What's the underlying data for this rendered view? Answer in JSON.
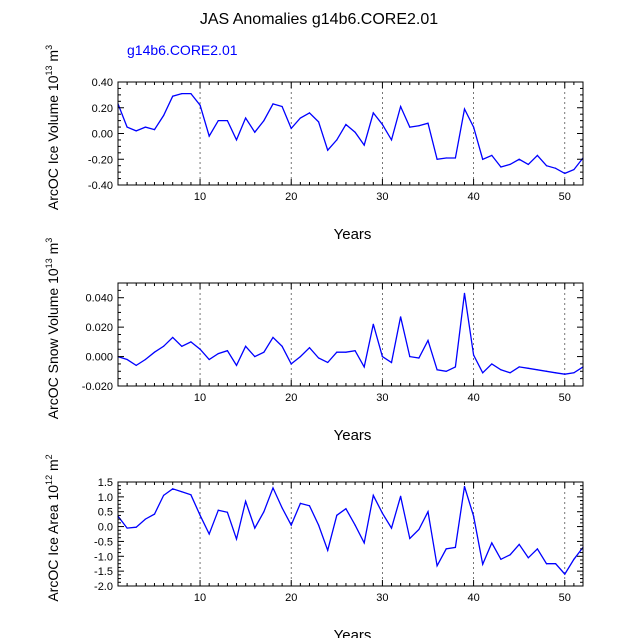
{
  "title": "JAS Anomalies g14b6.CORE2.01",
  "legend_label": "g14b6.CORE2.01",
  "colors": {
    "series": "#0000ff",
    "axis": "#000000",
    "refline": "#555555"
  },
  "chart_data": [
    {
      "type": "line",
      "name": "ice-volume",
      "ylabel_parts": {
        "main": "ArcOC Ice Volume 10",
        "exp": "13",
        "unit": " m",
        "unit_exp": "3"
      },
      "xlabel": "Years",
      "xlim": [
        1,
        52
      ],
      "ylim": [
        -0.4,
        0.4
      ],
      "xticks": [
        10,
        20,
        30,
        40,
        50
      ],
      "yticks": [
        -0.4,
        -0.2,
        0.0,
        0.2,
        0.4
      ],
      "ytick_labels": [
        "-0.40",
        "-0.20",
        "0.00",
        "0.20",
        "0.40"
      ],
      "vlines": [
        10,
        20,
        30,
        40,
        50
      ],
      "x": [
        1,
        2,
        3,
        4,
        5,
        6,
        7,
        8,
        9,
        10,
        11,
        12,
        13,
        14,
        15,
        16,
        17,
        18,
        19,
        20,
        21,
        22,
        23,
        24,
        25,
        26,
        27,
        28,
        29,
        30,
        31,
        32,
        33,
        34,
        35,
        36,
        37,
        38,
        39,
        40,
        41,
        42,
        43,
        44,
        45,
        46,
        47,
        48,
        49,
        50,
        51,
        52
      ],
      "values": [
        0.23,
        0.05,
        0.02,
        0.05,
        0.03,
        0.14,
        0.29,
        0.31,
        0.31,
        0.22,
        -0.02,
        0.1,
        0.1,
        -0.05,
        0.12,
        0.01,
        0.1,
        0.23,
        0.21,
        0.04,
        0.12,
        0.16,
        0.09,
        -0.13,
        -0.05,
        0.07,
        0.01,
        -0.09,
        0.16,
        0.07,
        -0.05,
        0.21,
        0.05,
        0.06,
        0.08,
        -0.2,
        -0.19,
        -0.19,
        0.19,
        0.05,
        -0.2,
        -0.17,
        -0.26,
        -0.24,
        -0.2,
        -0.24,
        -0.17,
        -0.25,
        -0.27,
        -0.31,
        -0.28,
        -0.19
      ]
    },
    {
      "type": "line",
      "name": "snow-volume",
      "ylabel_parts": {
        "main": "ArcOC Snow Volume 10",
        "exp": "13",
        "unit": " m",
        "unit_exp": "3"
      },
      "xlabel": "Years",
      "xlim": [
        1,
        52
      ],
      "ylim": [
        -0.02,
        0.05
      ],
      "xticks": [
        10,
        20,
        30,
        40,
        50
      ],
      "yticks": [
        -0.02,
        0.0,
        0.02,
        0.04
      ],
      "ytick_labels": [
        "-0.020",
        "0.000",
        "0.020",
        "0.040"
      ],
      "vlines": [
        10,
        20,
        30,
        40,
        50
      ],
      "x": [
        1,
        2,
        3,
        4,
        5,
        6,
        7,
        8,
        9,
        10,
        11,
        12,
        13,
        14,
        15,
        16,
        17,
        18,
        19,
        20,
        21,
        22,
        23,
        24,
        25,
        26,
        27,
        28,
        29,
        30,
        31,
        32,
        33,
        34,
        35,
        36,
        37,
        38,
        39,
        40,
        41,
        42,
        43,
        44,
        45,
        46,
        47,
        48,
        49,
        50,
        51,
        52
      ],
      "values": [
        0.0,
        -0.002,
        -0.006,
        -0.002,
        0.003,
        0.007,
        0.013,
        0.007,
        0.01,
        0.005,
        -0.002,
        0.002,
        0.004,
        -0.006,
        0.007,
        0.0,
        0.003,
        0.013,
        0.007,
        -0.005,
        0.0,
        0.006,
        -0.001,
        -0.004,
        0.003,
        0.003,
        0.004,
        -0.007,
        0.022,
        0.0,
        -0.004,
        0.027,
        0.0,
        -0.001,
        0.011,
        -0.009,
        -0.01,
        -0.007,
        0.043,
        0.001,
        -0.011,
        -0.005,
        -0.009,
        -0.011,
        -0.007,
        -0.008,
        -0.009,
        -0.01,
        -0.011,
        -0.012,
        -0.011,
        -0.007
      ]
    },
    {
      "type": "line",
      "name": "ice-area",
      "ylabel_parts": {
        "main": "ArcOC Ice Area 10",
        "exp": "12",
        "unit": " m",
        "unit_exp": "2"
      },
      "xlabel": "Years",
      "xlim": [
        1,
        52
      ],
      "ylim": [
        -2.0,
        1.5
      ],
      "xticks": [
        10,
        20,
        30,
        40,
        50
      ],
      "yticks": [
        -2.0,
        -1.5,
        -1.0,
        -0.5,
        0.0,
        0.5,
        1.0,
        1.5
      ],
      "ytick_labels": [
        "-2.0",
        "-1.5",
        "-1.0",
        "-0.5",
        "0.0",
        "0.5",
        "1.0",
        "1.5"
      ],
      "vlines": [
        10,
        20,
        30,
        40,
        50
      ],
      "x": [
        1,
        2,
        3,
        4,
        5,
        6,
        7,
        8,
        9,
        10,
        11,
        12,
        13,
        14,
        15,
        16,
        17,
        18,
        19,
        20,
        21,
        22,
        23,
        24,
        25,
        26,
        27,
        28,
        29,
        30,
        31,
        32,
        33,
        34,
        35,
        36,
        37,
        38,
        39,
        40,
        41,
        42,
        43,
        44,
        45,
        46,
        47,
        48,
        49,
        50,
        51,
        52
      ],
      "values": [
        0.35,
        -0.05,
        -0.02,
        0.25,
        0.42,
        1.05,
        1.27,
        1.17,
        1.07,
        0.38,
        -0.25,
        0.55,
        0.48,
        -0.42,
        0.85,
        -0.05,
        0.5,
        1.3,
        0.63,
        0.05,
        0.78,
        0.7,
        0.05,
        -0.8,
        0.38,
        0.6,
        0.05,
        -0.55,
        1.05,
        0.45,
        -0.05,
        1.02,
        -0.4,
        -0.1,
        0.5,
        -1.32,
        -0.75,
        -0.7,
        1.35,
        0.35,
        -1.27,
        -0.55,
        -1.1,
        -0.95,
        -0.6,
        -1.05,
        -0.75,
        -1.25,
        -1.25,
        -1.6,
        -1.1,
        -0.7
      ]
    }
  ]
}
